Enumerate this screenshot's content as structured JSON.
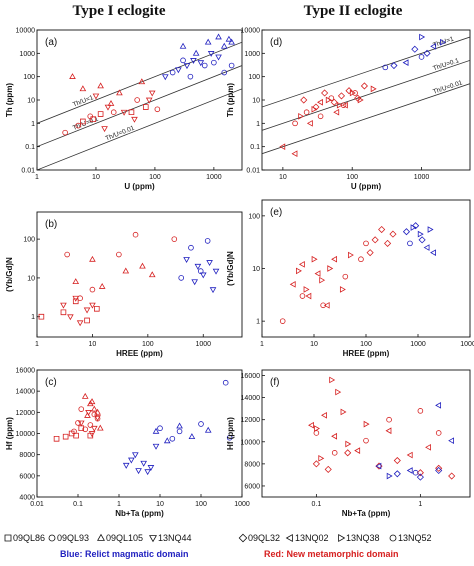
{
  "titles": {
    "left": "Type I eclogite",
    "right": "Type II eclogite"
  },
  "colors": {
    "blue": "#1f1fbf",
    "red": "#d62020",
    "axis": "#111111",
    "line": "#333333"
  },
  "legend_left": [
    {
      "symbol": "square",
      "label": "09QL86"
    },
    {
      "symbol": "circle",
      "label": "09QL93"
    },
    {
      "symbol": "triangle-up",
      "label": "09QL105"
    },
    {
      "symbol": "triangle-down",
      "label": "13NQ44"
    }
  ],
  "legend_right": [
    {
      "symbol": "diamond",
      "label": "09QL32"
    },
    {
      "symbol": "triangle-left",
      "label": "13NQ02"
    },
    {
      "symbol": "triangle-right",
      "label": "13NQ38"
    },
    {
      "symbol": "circle",
      "label": "13NQ52"
    }
  ],
  "footer": {
    "blue": "Blue: Relict magmatic domain",
    "red": "Red: New metamorphic domain"
  },
  "chart_data": [
    {
      "id": "a",
      "label": "(a)",
      "type": "scatter",
      "xlabel": "U (ppm)",
      "ylabel": "Th (ppm)",
      "xscale": "log",
      "yscale": "log",
      "xlim": [
        1,
        3000
      ],
      "ylim": [
        0.01,
        10000
      ],
      "xticks": [
        1,
        10,
        100,
        1000
      ],
      "yticks": [
        0.01,
        0.1,
        1,
        10,
        100,
        1000,
        10000
      ],
      "ref_lines": [
        {
          "label": "Th/U=1",
          "ratio": 1,
          "label_x": 4.2
        },
        {
          "label": "Th/U=0.1",
          "ratio": 0.1,
          "label_x": 4.2
        },
        {
          "label": "Th/U=0.01",
          "ratio": 0.01,
          "label_x": 15
        }
      ],
      "series": [
        {
          "sample": "09QL86",
          "domain": "red",
          "symbol": "square",
          "x": [
            6,
            9,
            12,
            40,
            70
          ],
          "y": [
            1.2,
            1.5,
            2.5,
            3,
            5
          ]
        },
        {
          "sample": "09QL93",
          "domain": "red",
          "symbol": "circle",
          "x": [
            3,
            5,
            8,
            20,
            50,
            110
          ],
          "y": [
            0.4,
            0.8,
            2,
            3,
            10,
            4
          ]
        },
        {
          "sample": "09QL105",
          "domain": "red",
          "symbol": "triangle-up",
          "x": [
            4,
            6,
            12,
            18,
            25,
            60
          ],
          "y": [
            100,
            30,
            40,
            7,
            20,
            60
          ]
        },
        {
          "sample": "13NQ44",
          "domain": "red",
          "symbol": "triangle-down",
          "x": [
            10,
            14,
            16,
            30,
            45,
            80,
            90
          ],
          "y": [
            15,
            0.6,
            5,
            3,
            1.5,
            10,
            20
          ]
        },
        {
          "sample": "09QL93",
          "domain": "blue",
          "symbol": "circle",
          "x": [
            200,
            300,
            400,
            700,
            1000,
            1500,
            2000
          ],
          "y": [
            150,
            500,
            100,
            300,
            400,
            150,
            300
          ]
        },
        {
          "sample": "09QL105",
          "domain": "blue",
          "symbol": "triangle-up",
          "x": [
            300,
            500,
            800,
            1200,
            1500,
            1800,
            2000
          ],
          "y": [
            2000,
            1000,
            3000,
            5000,
            2000,
            4000,
            3000
          ]
        },
        {
          "sample": "13NQ44",
          "domain": "blue",
          "symbol": "triangle-down",
          "x": [
            150,
            250,
            350,
            450,
            600,
            900,
            1200
          ],
          "y": [
            100,
            200,
            300,
            500,
            400,
            1000,
            700
          ]
        }
      ]
    },
    {
      "id": "d",
      "label": "(d)",
      "type": "scatter",
      "xlabel": "U (ppm)",
      "ylabel": "Th (ppm)",
      "xscale": "log",
      "yscale": "log",
      "xlim": [
        5,
        5000
      ],
      "ylim": [
        0.01,
        10000
      ],
      "xticks": [
        10,
        100,
        1000
      ],
      "yticks": [
        0.01,
        0.1,
        1,
        10,
        100,
        1000,
        10000
      ],
      "ref_lines": [
        {
          "label": "Th/U=1",
          "ratio": 1,
          "label_x": 1500
        },
        {
          "label": "Th/U=0.1",
          "ratio": 0.1,
          "label_x": 1500
        },
        {
          "label": "Th/U=0.01",
          "ratio": 0.01,
          "label_x": 1500
        }
      ],
      "series": [
        {
          "sample": "09QL32",
          "domain": "red",
          "symbol": "diamond",
          "x": [
            20,
            30,
            40,
            55,
            70,
            90,
            120,
            150
          ],
          "y": [
            10,
            5,
            20,
            8,
            15,
            25,
            12,
            40
          ]
        },
        {
          "sample": "13NQ02",
          "domain": "red",
          "symbol": "triangle-left",
          "x": [
            10,
            15,
            25,
            35,
            60,
            80
          ],
          "y": [
            0.1,
            0.05,
            1,
            8,
            3,
            6
          ]
        },
        {
          "sample": "13NQ38",
          "domain": "red",
          "symbol": "triangle-right",
          "x": [
            18,
            28,
            45,
            65,
            100,
            130,
            200
          ],
          "y": [
            2,
            4,
            10,
            6,
            20,
            10,
            30
          ]
        },
        {
          "sample": "13NQ52",
          "domain": "red",
          "symbol": "circle",
          "x": [
            15,
            22,
            35,
            50,
            75,
            110
          ],
          "y": [
            1,
            3,
            2,
            12,
            6,
            20
          ]
        },
        {
          "sample": "09QL32",
          "domain": "blue",
          "symbol": "diamond",
          "x": [
            400,
            800,
            1200
          ],
          "y": [
            300,
            1500,
            1000
          ]
        },
        {
          "sample": "13NQ02",
          "domain": "blue",
          "symbol": "triangle-left",
          "x": [
            600,
            1500
          ],
          "y": [
            400,
            2000
          ]
        },
        {
          "sample": "13NQ38",
          "domain": "blue",
          "symbol": "triangle-right",
          "x": [
            1000,
            2000
          ],
          "y": [
            5000,
            3000
          ]
        },
        {
          "sample": "13NQ52",
          "domain": "blue",
          "symbol": "circle",
          "x": [
            300,
            1000
          ],
          "y": [
            250,
            700
          ]
        }
      ]
    },
    {
      "id": "b",
      "label": "(b)",
      "type": "scatter",
      "xlabel": "HREE (ppm)",
      "ylabel": "(Yb/Gd)N",
      "xscale": "log",
      "yscale": "log",
      "xlim": [
        1,
        5000
      ],
      "ylim": [
        0.3,
        500
      ],
      "xticks": [
        1,
        10,
        100,
        1000
      ],
      "yticks": [
        1,
        10,
        100
      ],
      "series": [
        {
          "sample": "09QL86",
          "domain": "red",
          "symbol": "square",
          "x": [
            1.2,
            3,
            5,
            8,
            12
          ],
          "y": [
            1,
            1.3,
            2.5,
            0.8,
            1.6
          ]
        },
        {
          "sample": "09QL93",
          "domain": "red",
          "symbol": "circle",
          "x": [
            3.5,
            6,
            10,
            30,
            60,
            300
          ],
          "y": [
            40,
            3,
            5,
            40,
            130,
            100
          ]
        },
        {
          "sample": "09QL105",
          "domain": "red",
          "symbol": "triangle-up",
          "x": [
            5,
            10,
            15,
            40,
            80,
            120
          ],
          "y": [
            8,
            30,
            6,
            15,
            20,
            12
          ]
        },
        {
          "sample": "13NQ44",
          "domain": "red",
          "symbol": "triangle-down",
          "x": [
            3,
            4,
            5,
            6,
            8,
            10
          ],
          "y": [
            2,
            1,
            3,
            0.7,
            1.5,
            2
          ]
        },
        {
          "sample": "09QL93",
          "domain": "blue",
          "symbol": "circle",
          "x": [
            400,
            600,
            900,
            1200
          ],
          "y": [
            10,
            60,
            15,
            90
          ]
        },
        {
          "sample": "13NQ44",
          "domain": "blue",
          "symbol": "triangle-down",
          "x": [
            500,
            700,
            800,
            1000,
            1300,
            1500,
            1700
          ],
          "y": [
            30,
            8,
            20,
            12,
            25,
            5,
            15
          ]
        }
      ]
    },
    {
      "id": "e",
      "label": "(e)",
      "type": "scatter",
      "xlabel": "HREE (ppm)",
      "ylabel": "(Yb/Gd)N",
      "xscale": "log",
      "yscale": "log",
      "xlim": [
        1,
        10000
      ],
      "ylim": [
        0.5,
        200
      ],
      "xticks": [
        1,
        10,
        100,
        1000,
        10000
      ],
      "yticks": [
        1,
        10,
        100
      ],
      "series": [
        {
          "sample": "09QL32",
          "domain": "red",
          "symbol": "diamond",
          "x": [
            120,
            150,
            200,
            260,
            330
          ],
          "y": [
            20,
            35,
            55,
            30,
            45
          ]
        },
        {
          "sample": "13NQ02",
          "domain": "red",
          "symbol": "triangle-left",
          "x": [
            4,
            6,
            8,
            12,
            18,
            25
          ],
          "y": [
            5,
            12,
            3,
            8,
            2,
            15
          ]
        },
        {
          "sample": "13NQ38",
          "domain": "red",
          "symbol": "triangle-right",
          "x": [
            5,
            7,
            10,
            14,
            20,
            35,
            50
          ],
          "y": [
            9,
            4,
            15,
            6,
            10,
            4,
            18
          ]
        },
        {
          "sample": "13NQ52",
          "domain": "red",
          "symbol": "circle",
          "x": [
            2.5,
            6,
            15,
            40,
            80,
            100
          ],
          "y": [
            1,
            3,
            2,
            7,
            15,
            30
          ]
        },
        {
          "sample": "09QL32",
          "domain": "blue",
          "symbol": "diamond",
          "x": [
            600,
            900,
            1200
          ],
          "y": [
            50,
            65,
            35
          ]
        },
        {
          "sample": "13NQ02",
          "domain": "blue",
          "symbol": "triangle-left",
          "x": [
            1500,
            2000
          ],
          "y": [
            25,
            20
          ]
        },
        {
          "sample": "13NQ38",
          "domain": "blue",
          "symbol": "triangle-right",
          "x": [
            800,
            1100,
            1700
          ],
          "y": [
            60,
            45,
            55
          ]
        },
        {
          "sample": "13NQ52",
          "domain": "blue",
          "symbol": "circle",
          "x": [
            700
          ],
          "y": [
            30
          ]
        }
      ]
    },
    {
      "id": "c",
      "label": "(c)",
      "type": "scatter",
      "xlabel": "Nb+Ta (ppm)",
      "ylabel": "Hf (ppm)",
      "xscale": "log",
      "yscale": "linear",
      "xlim": [
        0.01,
        1000
      ],
      "ylim": [
        4000,
        16000
      ],
      "xticks": [
        0.01,
        0.1,
        1,
        10,
        100,
        1000
      ],
      "yticks": [
        4000,
        6000,
        8000,
        10000,
        12000,
        14000,
        16000
      ],
      "series": [
        {
          "sample": "09QL86",
          "domain": "red",
          "symbol": "square",
          "x": [
            0.03,
            0.05,
            0.07,
            0.09,
            0.12,
            0.2
          ],
          "y": [
            9500,
            9700,
            10000,
            9800,
            10500,
            9800
          ]
        },
        {
          "sample": "09QL93",
          "domain": "red",
          "symbol": "circle",
          "x": [
            0.08,
            0.1,
            0.12,
            0.15,
            0.2,
            0.25,
            0.3
          ],
          "y": [
            10200,
            11000,
            12300,
            10400,
            10800,
            11800,
            11400
          ]
        },
        {
          "sample": "09QL105",
          "domain": "red",
          "symbol": "triangle-up",
          "x": [
            0.15,
            0.17,
            0.2,
            0.22,
            0.25,
            0.3,
            0.35
          ],
          "y": [
            13500,
            11700,
            12800,
            13000,
            12300,
            12000,
            10500
          ]
        },
        {
          "sample": "13NQ44",
          "domain": "red",
          "symbol": "triangle-down",
          "x": [
            0.12,
            0.18,
            0.22,
            0.25,
            0.3
          ],
          "y": [
            11000,
            12000,
            10000,
            10500,
            11500
          ]
        },
        {
          "sample": "09QL93",
          "domain": "blue",
          "symbol": "circle",
          "x": [
            10,
            20,
            30,
            100,
            400,
            500
          ],
          "y": [
            10500,
            9500,
            10200,
            10900,
            14800,
            9600
          ]
        },
        {
          "sample": "09QL105",
          "domain": "blue",
          "symbol": "triangle-up",
          "x": [
            8,
            15,
            30,
            60,
            150
          ],
          "y": [
            10200,
            9300,
            10700,
            9700,
            10300
          ]
        },
        {
          "sample": "13NQ44",
          "domain": "blue",
          "symbol": "triangle-down",
          "x": [
            1.5,
            2,
            2.5,
            3,
            4,
            5,
            6,
            8
          ],
          "y": [
            7000,
            7500,
            8000,
            6500,
            7200,
            6400,
            6800,
            8800
          ]
        }
      ]
    },
    {
      "id": "f",
      "label": "(f)",
      "type": "scatter",
      "xlabel": "Nb+Ta (ppm)",
      "ylabel": "Hf (ppm)",
      "xscale": "log",
      "yscale": "linear",
      "xlim": [
        0.03,
        3
      ],
      "ylim": [
        5000,
        16500
      ],
      "xticks": [
        0.1,
        1
      ],
      "yticks": [
        6000,
        8000,
        10000,
        12000,
        14000,
        16000
      ],
      "series": [
        {
          "sample": "09QL32",
          "domain": "red",
          "symbol": "diamond",
          "x": [
            0.1,
            0.13,
            0.2,
            0.4,
            0.6,
            1.0,
            1.5,
            2.0
          ],
          "y": [
            8000,
            7500,
            9000,
            7800,
            8300,
            7200,
            7600,
            6900
          ]
        },
        {
          "sample": "13NQ02",
          "domain": "red",
          "symbol": "triangle-left",
          "x": [
            0.09,
            0.12,
            0.15,
            0.25,
            0.5,
            0.8,
            1.2
          ],
          "y": [
            11500,
            12400,
            10500,
            9200,
            11000,
            8800,
            9500
          ]
        },
        {
          "sample": "13NQ38",
          "domain": "red",
          "symbol": "triangle-right",
          "x": [
            0.1,
            0.11,
            0.14,
            0.16,
            0.18,
            0.2,
            0.3
          ],
          "y": [
            11200,
            8500,
            15600,
            14500,
            12700,
            9800,
            11600
          ]
        },
        {
          "sample": "13NQ52",
          "domain": "red",
          "symbol": "circle",
          "x": [
            0.1,
            0.15,
            0.3,
            0.5,
            1.0,
            1.5
          ],
          "y": [
            10800,
            9000,
            10100,
            12000,
            12800,
            10800
          ]
        },
        {
          "sample": "09QL32",
          "domain": "blue",
          "symbol": "diamond",
          "x": [
            0.6,
            1.0,
            1.5
          ],
          "y": [
            7100,
            6800,
            7400
          ]
        },
        {
          "sample": "13NQ02",
          "domain": "blue",
          "symbol": "triangle-left",
          "x": [
            0.4,
            0.8,
            1.5,
            2.0
          ],
          "y": [
            7800,
            7400,
            13300,
            10100
          ]
        },
        {
          "sample": "13NQ38",
          "domain": "blue",
          "symbol": "triangle-right",
          "x": [
            0.5
          ],
          "y": [
            6900
          ]
        },
        {
          "sample": "13NQ52",
          "domain": "blue",
          "symbol": "circle",
          "x": [
            0.9
          ],
          "y": [
            7200
          ]
        }
      ]
    }
  ]
}
